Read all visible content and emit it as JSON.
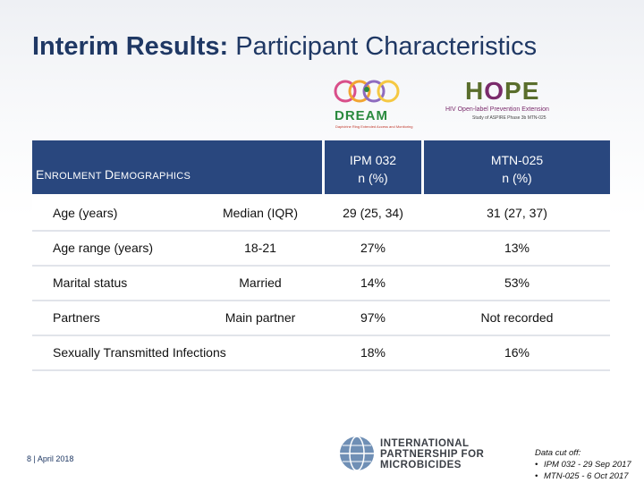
{
  "title": {
    "bold": "Interim Results:",
    "rest": " Participant Characteristics"
  },
  "logos": {
    "dream": {
      "name": "DREAM",
      "tagline": "Dapivirine Ring Extended Access and Monitoring"
    },
    "hope": {
      "name_h": "H",
      "name_o": "O",
      "name_pe": "PE",
      "subtitle": "HIV Open-label Prevention Extension",
      "sub2": "Study of ASPIRE Phase 3b MTN-025"
    }
  },
  "table": {
    "header_label_big1": "E",
    "header_label_small1": "NROLMENT ",
    "header_label_big2": "D",
    "header_label_small2": "EMOGRAPHICS",
    "col1_line1": "IPM 032",
    "col1_line2": "n (%)",
    "col2_line1": "MTN-025",
    "col2_line2": "n (%)",
    "rows": [
      {
        "label": "Age (years)",
        "sub": "Median (IQR)",
        "v1": "29 (25, 34)",
        "v2": "31 (27, 37)"
      },
      {
        "label": "Age range (years)",
        "sub": "18-21",
        "v1": "27%",
        "v2": "13%"
      },
      {
        "label": "Marital status",
        "sub": "Married",
        "v1": "14%",
        "v2": "53%"
      },
      {
        "label": "Partners",
        "sub": "Main partner",
        "v1": "97%",
        "v2": "Not recorded"
      },
      {
        "label": "Sexually Transmitted Infections",
        "sub": "",
        "v1": "18%",
        "v2": "16%"
      }
    ]
  },
  "footer": {
    "page": "8",
    "separator": "|",
    "date": "April 2018",
    "org_line1": "International",
    "org_line2": "Partnership for",
    "org_line3": "Microbicides",
    "cutoff_title": "Data cut off:",
    "cutoff_1": "IPM 032 - 29 Sep 2017",
    "cutoff_2": "MTN-025 - 6 Oct 2017"
  }
}
